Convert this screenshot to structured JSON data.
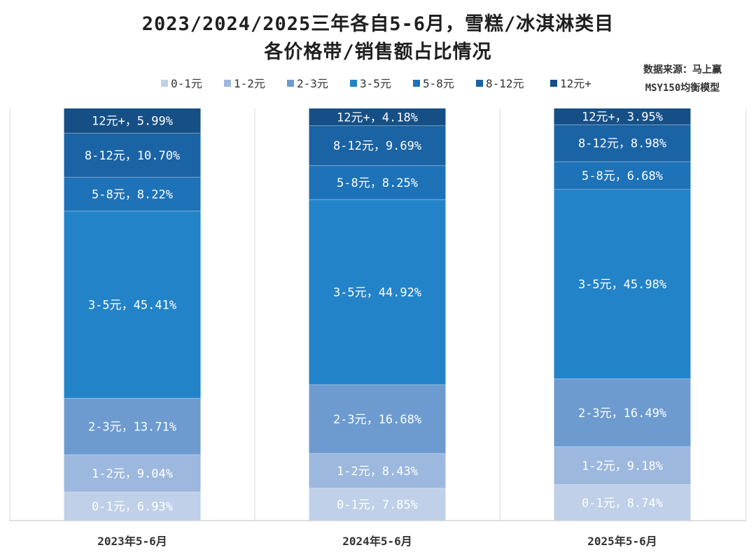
{
  "chart_data": {
    "type": "bar",
    "stacked": true,
    "normalized_percent": true,
    "title_line1": "2023/2024/2025三年各自5-6月，雪糕/冰淇淋类目",
    "title_line2": "各价格带/销售额占比情况",
    "source_line1": "数据来源：马上赢",
    "source_line2": "MSY150均衡模型",
    "categories": [
      "2023年5-6月",
      "2024年5-6月",
      "2025年5-6月"
    ],
    "ylim": [
      0,
      100
    ],
    "legend_position": "top",
    "grid": false,
    "series": [
      {
        "name": "0-1元",
        "color": "#bfd0e8",
        "values": [
          6.93,
          7.85,
          8.74
        ],
        "labels": [
          "0-1元，6.93%",
          "0-1元，7.85%",
          "0-1元，8.74%"
        ]
      },
      {
        "name": "1-2元",
        "color": "#9db8de",
        "values": [
          9.04,
          8.43,
          9.18
        ],
        "labels": [
          "1-2元，9.04%",
          "1-2元，8.43%",
          "1-2元，9.18%"
        ]
      },
      {
        "name": "2-3元",
        "color": "#6d9bd0",
        "values": [
          13.71,
          16.68,
          16.49
        ],
        "labels": [
          "2-3元，13.71%",
          "2-3元，16.68%",
          "2-3元，16.49%"
        ]
      },
      {
        "name": "3-5元",
        "color": "#2383c8",
        "values": [
          45.41,
          44.92,
          45.98
        ],
        "labels": [
          "3-5元，45.41%",
          "3-5元，44.92%",
          "3-5元，45.98%"
        ]
      },
      {
        "name": "5-8元",
        "color": "#1d72b8",
        "values": [
          8.22,
          8.25,
          6.68
        ],
        "labels": [
          "5-8元，8.22%",
          "5-8元，8.25%",
          "5-8元，6.68%"
        ]
      },
      {
        "name": "8-12元",
        "color": "#1a63a4",
        "values": [
          10.7,
          9.69,
          8.98
        ],
        "labels": [
          "8-12元，10.70%",
          "8-12元，9.69%",
          "8-12元，8.98%"
        ]
      },
      {
        "name": "12元+",
        "color": "#154f86",
        "values": [
          5.99,
          4.18,
          3.95
        ],
        "labels": [
          "12元+，5.99%",
          "12元+，4.18%",
          "12元+，3.95%"
        ]
      }
    ]
  }
}
